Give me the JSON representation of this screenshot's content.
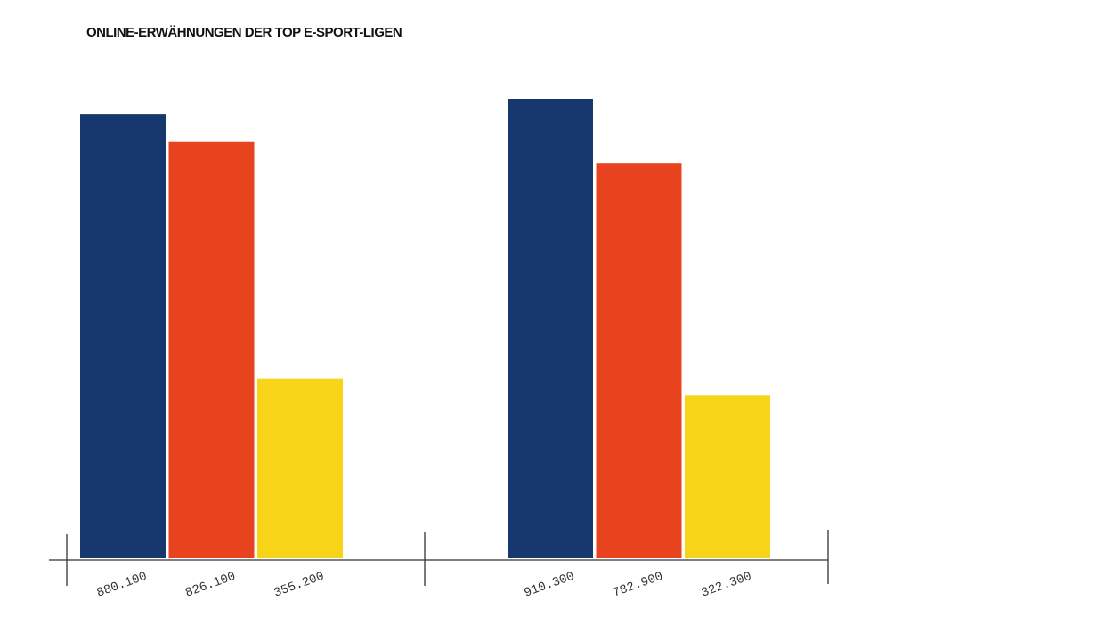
{
  "chart_data": {
    "type": "bar",
    "title": "ONLINE-ERWÄHNUNGEN DER TOP E-SPORT-LIGEN",
    "categories": [
      null,
      null
    ],
    "series": [
      {
        "color": "#16386e",
        "values": [
          880100,
          910300
        ],
        "value_labels": [
          "880.100",
          "910.300"
        ]
      },
      {
        "color": "#e8431f",
        "values": [
          826100,
          782900
        ],
        "value_labels": [
          "826.100",
          "782.900"
        ]
      },
      {
        "color": "#f8d418",
        "values": [
          355200,
          322300
        ],
        "value_labels": [
          "355.200",
          "322.300"
        ]
      }
    ]
  }
}
